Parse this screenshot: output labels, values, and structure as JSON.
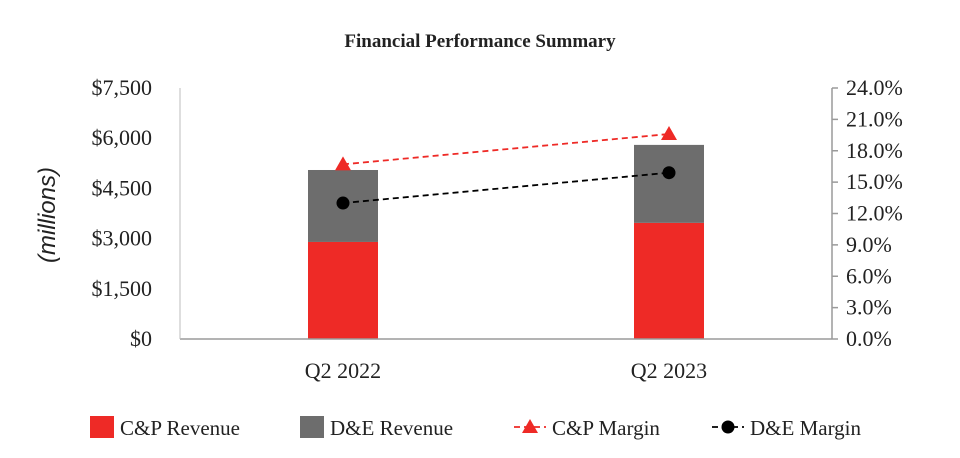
{
  "chart_data": {
    "type": "bar",
    "title": "Financial Performance Summary",
    "ylabel": "(millions)",
    "categories": [
      "Q2 2022",
      "Q2 2023"
    ],
    "ylim": [
      0,
      7500
    ],
    "y2lim": [
      0,
      24
    ],
    "y_ticks": [
      "$0",
      "$1,500",
      "$3,000",
      "$4,500",
      "$6,000",
      "$7,500"
    ],
    "y2_ticks": [
      "0.0%",
      "3.0%",
      "6.0%",
      "9.0%",
      "12.0%",
      "15.0%",
      "18.0%",
      "21.0%",
      "24.0%"
    ],
    "stacked": true,
    "series": [
      {
        "name": "C&P Revenue",
        "type": "bar",
        "axis": "left",
        "color": "#ee2a26",
        "values": [
          2900,
          3470
        ]
      },
      {
        "name": "D&E Revenue",
        "type": "bar",
        "axis": "left",
        "color": "#6d6d6d",
        "values": [
          2150,
          2330
        ]
      },
      {
        "name": "C&P Margin",
        "type": "line",
        "axis": "right",
        "marker": "triangle",
        "dashed": true,
        "color": "#ee2a26",
        "values": [
          16.7,
          19.6
        ]
      },
      {
        "name": "D&E Margin",
        "type": "line",
        "axis": "right",
        "marker": "circle",
        "dashed": true,
        "color": "#000000",
        "values": [
          13.0,
          15.9
        ]
      }
    ],
    "grid": false,
    "legend_position": "bottom"
  }
}
